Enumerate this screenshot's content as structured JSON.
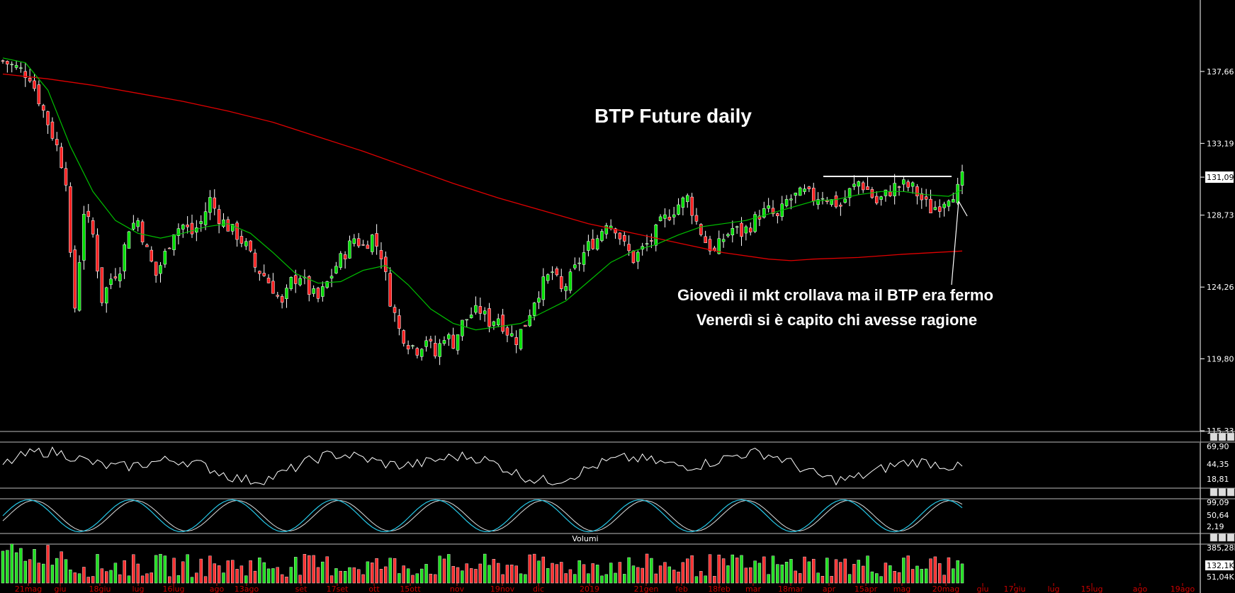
{
  "chart_data": {
    "type": "candlestick",
    "title": "BTP Future daily",
    "annotations": [
      "Giovedì il mkt crollava ma il BTP era fermo",
      "Venerdì si è capito chi avesse ragione"
    ],
    "y_ticks": [
      "115,33",
      "119,80",
      "124,26",
      "128,73",
      "131,09",
      "133,19",
      "137,66"
    ],
    "ylim": [
      115.33,
      142.1
    ],
    "last_price_label": "131,09",
    "resistance_level": 131.09,
    "x_ticks": [
      "21mag",
      "giu",
      "18giu",
      "lug",
      "16lug",
      "ago",
      "13ago",
      "set",
      "17set",
      "ott",
      "15ott",
      "nov",
      "19nov",
      "dic",
      "2019",
      "21gen",
      "feb",
      "18feb",
      "mar",
      "18mar",
      "apr",
      "15apr",
      "mag",
      "20mag",
      "giu",
      "17giu",
      "lug",
      "15lug",
      "ago",
      "19ago"
    ],
    "series": [
      {
        "name": "",
        "color": "#00c000",
        "kind": "moving-average-short"
      },
      {
        "name": "",
        "color": "#e00000",
        "kind": "moving-average-long"
      }
    ],
    "close_path": [
      [
        0,
        138.3
      ],
      [
        3,
        137.9
      ],
      [
        6,
        137.4
      ],
      [
        9,
        135.2
      ],
      [
        12,
        133.0
      ],
      [
        14,
        131.0
      ],
      [
        15,
        126.0
      ],
      [
        16,
        123.0
      ],
      [
        18,
        129.0
      ],
      [
        20,
        127.5
      ],
      [
        22,
        123.5
      ],
      [
        24,
        124.8
      ],
      [
        26,
        125.5
      ],
      [
        28,
        128.0
      ],
      [
        30,
        128.4
      ],
      [
        32,
        126.5
      ],
      [
        34,
        125.0
      ],
      [
        36,
        126.3
      ],
      [
        38,
        127.8
      ],
      [
        40,
        128.1
      ],
      [
        42,
        127.6
      ],
      [
        44,
        128.3
      ],
      [
        46,
        129.7
      ],
      [
        48,
        128.6
      ],
      [
        50,
        128.0
      ],
      [
        52,
        127.5
      ],
      [
        54,
        126.8
      ],
      [
        56,
        125.5
      ],
      [
        58,
        125.0
      ],
      [
        60,
        124.2
      ],
      [
        62,
        123.1
      ],
      [
        64,
        124.6
      ],
      [
        66,
        125.0
      ],
      [
        68,
        124.0
      ],
      [
        70,
        123.5
      ],
      [
        72,
        124.5
      ],
      [
        74,
        125.6
      ],
      [
        76,
        126.4
      ],
      [
        78,
        127.3
      ],
      [
        80,
        126.8
      ],
      [
        82,
        127.4
      ],
      [
        84,
        126.3
      ],
      [
        86,
        123.5
      ],
      [
        88,
        121.6
      ],
      [
        90,
        120.8
      ],
      [
        92,
        120.4
      ],
      [
        94,
        121.1
      ],
      [
        96,
        120.0
      ],
      [
        98,
        121.3
      ],
      [
        100,
        120.8
      ],
      [
        102,
        122.0
      ],
      [
        104,
        122.6
      ],
      [
        106,
        122.8
      ],
      [
        108,
        122.1
      ],
      [
        110,
        122.4
      ],
      [
        112,
        121.5
      ],
      [
        114,
        121.0
      ],
      [
        116,
        122.0
      ],
      [
        118,
        123.5
      ],
      [
        120,
        124.5
      ],
      [
        122,
        125.2
      ],
      [
        124,
        124.0
      ],
      [
        126,
        124.8
      ],
      [
        128,
        125.9
      ],
      [
        130,
        126.8
      ],
      [
        132,
        127.3
      ],
      [
        134,
        128.4
      ],
      [
        136,
        128.0
      ],
      [
        138,
        126.8
      ],
      [
        140,
        126.0
      ],
      [
        142,
        126.6
      ],
      [
        144,
        127.2
      ],
      [
        146,
        128.2
      ],
      [
        148,
        128.8
      ],
      [
        150,
        129.4
      ],
      [
        152,
        129.8
      ],
      [
        154,
        128.3
      ],
      [
        156,
        127.1
      ],
      [
        158,
        126.4
      ],
      [
        160,
        127.3
      ],
      [
        162,
        127.9
      ],
      [
        164,
        127.6
      ],
      [
        166,
        128.1
      ],
      [
        168,
        128.8
      ],
      [
        170,
        129.0
      ],
      [
        172,
        128.5
      ],
      [
        174,
        129.6
      ],
      [
        176,
        129.9
      ],
      [
        178,
        130.1
      ],
      [
        180,
        129.8
      ],
      [
        182,
        130.0
      ],
      [
        184,
        129.6
      ],
      [
        186,
        129.3
      ],
      [
        188,
        130.2
      ],
      [
        190,
        130.8
      ],
      [
        192,
        130.3
      ],
      [
        194,
        129.5
      ],
      [
        196,
        130.0
      ],
      [
        198,
        130.5
      ],
      [
        200,
        130.6
      ],
      [
        202,
        130.4
      ],
      [
        204,
        129.7
      ],
      [
        206,
        129.1
      ],
      [
        208,
        129.4
      ],
      [
        210,
        130.0
      ],
      [
        212,
        130.3
      ],
      [
        213,
        131.0
      ]
    ],
    "ma_short": [
      [
        0,
        138.5
      ],
      [
        5,
        138.2
      ],
      [
        10,
        136.5
      ],
      [
        15,
        133.0
      ],
      [
        20,
        130.2
      ],
      [
        25,
        128.4
      ],
      [
        30,
        127.6
      ],
      [
        35,
        127.3
      ],
      [
        40,
        127.6
      ],
      [
        45,
        128.0
      ],
      [
        50,
        128.2
      ],
      [
        55,
        127.6
      ],
      [
        60,
        126.4
      ],
      [
        65,
        125.1
      ],
      [
        70,
        124.5
      ],
      [
        75,
        124.6
      ],
      [
        80,
        125.3
      ],
      [
        85,
        125.6
      ],
      [
        90,
        124.4
      ],
      [
        95,
        122.9
      ],
      [
        100,
        122.0
      ],
      [
        105,
        121.6
      ],
      [
        110,
        121.8
      ],
      [
        115,
        122.0
      ],
      [
        120,
        122.7
      ],
      [
        125,
        123.4
      ],
      [
        130,
        124.6
      ],
      [
        135,
        125.8
      ],
      [
        140,
        126.5
      ],
      [
        145,
        126.9
      ],
      [
        150,
        127.5
      ],
      [
        155,
        128.0
      ],
      [
        160,
        128.2
      ],
      [
        165,
        128.4
      ],
      [
        170,
        128.8
      ],
      [
        175,
        129.2
      ],
      [
        180,
        129.6
      ],
      [
        185,
        129.7
      ],
      [
        190,
        130.0
      ],
      [
        195,
        130.2
      ],
      [
        200,
        130.2
      ],
      [
        205,
        130.0
      ],
      [
        210,
        129.9
      ],
      [
        213,
        130.3
      ]
    ],
    "ma_long": [
      [
        0,
        137.5
      ],
      [
        10,
        137.2
      ],
      [
        20,
        136.8
      ],
      [
        30,
        136.3
      ],
      [
        40,
        135.8
      ],
      [
        50,
        135.2
      ],
      [
        60,
        134.5
      ],
      [
        70,
        133.6
      ],
      [
        80,
        132.7
      ],
      [
        90,
        131.7
      ],
      [
        100,
        130.7
      ],
      [
        110,
        129.8
      ],
      [
        120,
        129.0
      ],
      [
        130,
        128.2
      ],
      [
        140,
        127.6
      ],
      [
        150,
        127.0
      ],
      [
        160,
        126.4
      ],
      [
        170,
        126.0
      ],
      [
        175,
        125.9
      ],
      [
        180,
        126.0
      ],
      [
        190,
        126.1
      ],
      [
        200,
        126.3
      ],
      [
        213,
        126.5
      ]
    ],
    "indicator_panels": [
      {
        "labels": [
          "69,90",
          "44,35",
          "18,81"
        ]
      },
      {
        "labels": [
          "99,09",
          "50,64",
          "2,19"
        ]
      },
      {
        "title": "Volumi",
        "labels": [
          "385,28K",
          "132,1K",
          "51,04K"
        ]
      }
    ]
  }
}
